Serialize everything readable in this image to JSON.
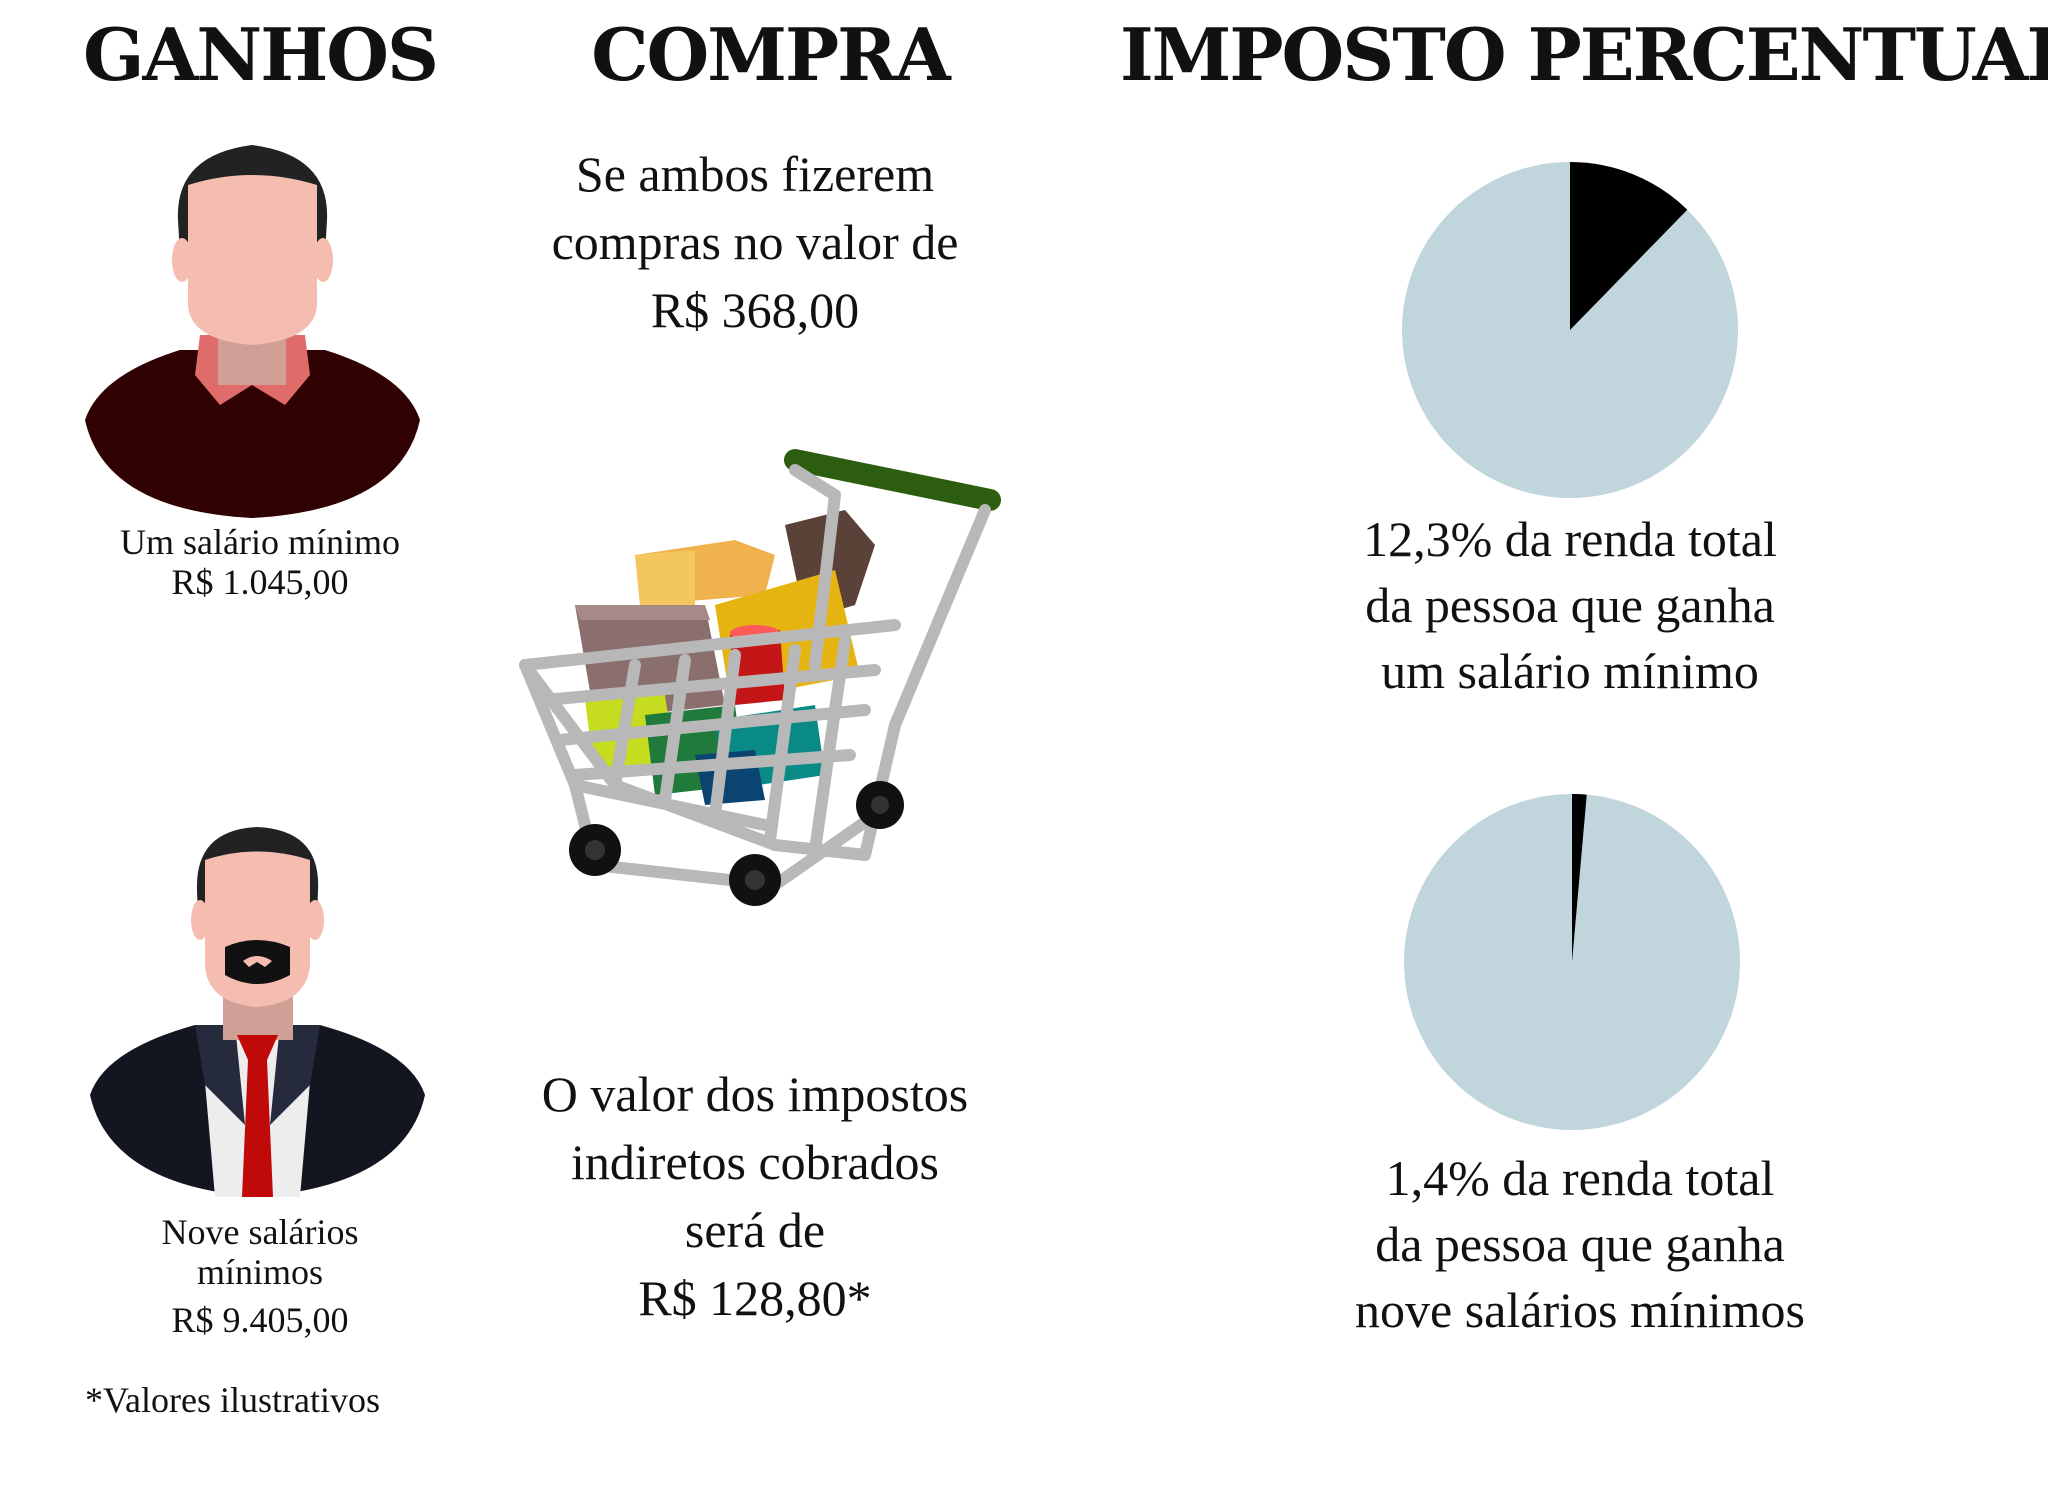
{
  "headings": {
    "ganhos": "GANHOS",
    "compra": "COMPRA",
    "imposto": "IMPOSTO PERCENTUAL"
  },
  "person1": {
    "label": "Um salário mínimo",
    "amount": "R$ 1.045,00"
  },
  "person2": {
    "label_line1": "Nove salários",
    "label_line2": "mínimos",
    "amount": "R$ 9.405,00"
  },
  "footnote": "*Valores ilustrativos",
  "purchase": {
    "line1": "Se ambos fizerem",
    "line2": "compras no valor de",
    "line3": "R$ 368,00"
  },
  "tax": {
    "line1": "O valor dos impostos",
    "line2": "indiretos cobrados",
    "line3": "será de",
    "line4": "R$ 128,80*"
  },
  "pie1_caption": {
    "line1": "12,3% da renda total",
    "line2": "da pessoa que ganha",
    "line3": "um salário mínimo"
  },
  "pie2_caption": {
    "line1": "1,4% da renda total",
    "line2": "da pessoa que ganha",
    "line3": "nove salários mínimos"
  },
  "colors": {
    "pie_background": "#c1d6dc",
    "pie_slice": "#000000"
  },
  "chart_data": [
    {
      "type": "pie",
      "slices": [
        {
          "label": "12,3%",
          "value": 12.3
        },
        {
          "label": "",
          "value": 87.7
        }
      ]
    },
    {
      "type": "pie",
      "slices": [
        {
          "label": "1,4%",
          "value": 1.4
        },
        {
          "label": "",
          "value": 98.6
        }
      ]
    }
  ]
}
